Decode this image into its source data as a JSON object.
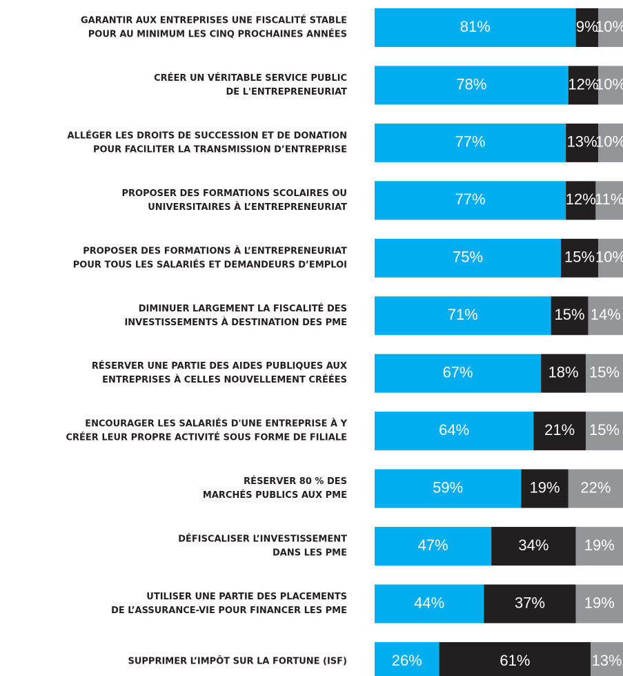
{
  "chart_data": {
    "type": "stacked-bar-horizontal",
    "categories": [
      [
        "GARANTIR AUX ENTREPRISES UNE FISCALITÉ STABLE",
        "POUR AU MINIMUM LES CINQ PROCHAINES ANNÉES"
      ],
      [
        "CRÉER UN VÉRITABLE SERVICE PUBLIC",
        "DE L'ENTREPRENEURIAT"
      ],
      [
        "ALLÉGER LES DROITS DE SUCCESSION ET DE DONATION",
        "POUR FACILITER LA TRANSMISSION D’ENTREPRISE"
      ],
      [
        "PROPOSER DES FORMATIONS SCOLAIRES OU",
        "UNIVERSITAIRES À L’ENTREPRENEURIAT"
      ],
      [
        "PROPOSER DES FORMATIONS À L’ENTREPRENEURIAT",
        "POUR TOUS LES SALARIÉS ET DEMANDEURS D’EMPLOI"
      ],
      [
        "DIMINUER LARGEMENT LA FISCALITÉ DES",
        "INVESTISSEMENTS À DESTINATION DES PME"
      ],
      [
        "RÉSERVER UNE PARTIE DES AIDES PUBLIQUES AUX",
        "ENTREPRISES À CELLES NOUVELLEMENT CRÉÉES"
      ],
      [
        "ENCOURAGER LES SALARIÉS D'UNE ENTREPRISE À Y",
        "CRÉER LEUR PROPRE ACTIVITÉ SOUS FORME DE FILIALE"
      ],
      [
        "RÉSERVER 80 % DES",
        "MARCHÉS PUBLICS AUX PME"
      ],
      [
        "DÉFISCALISER L’INVESTISSEMENT",
        "DANS LES PME"
      ],
      [
        "UTILISER UNE PARTIE DES PLACEMENTS",
        "DE L’ASSURANCE-VIE POUR FINANCER LES PME"
      ],
      [
        "SUPPRIMER L’IMPÔT SUR LA FORTUNE (ISF)"
      ]
    ],
    "series": [
      {
        "color": "#00aeef",
        "values": [
          81,
          78,
          77,
          77,
          75,
          71,
          67,
          64,
          59,
          47,
          44,
          26
        ],
        "value_labels": [
          "81%",
          "78%",
          "77%",
          "77%",
          "75%",
          "71%",
          "67%",
          "64%",
          "59%",
          "47%",
          "44%",
          "26%"
        ]
      },
      {
        "color": "#231f20",
        "values": [
          9,
          12,
          13,
          12,
          15,
          15,
          18,
          21,
          19,
          34,
          37,
          61
        ],
        "value_labels": [
          "9%",
          "12%",
          "13%",
          "12%",
          "15%",
          "15%",
          "18%",
          "21%",
          "19%",
          "34%",
          "37%",
          "61%"
        ]
      },
      {
        "color": "#939598",
        "values": [
          10,
          10,
          10,
          11,
          10,
          14,
          15,
          15,
          22,
          19,
          19,
          13
        ],
        "value_labels": [
          "10%",
          "10%",
          "10%",
          "11%",
          "10%",
          "14%",
          "15%",
          "15%",
          "22%",
          "19%",
          "19%",
          "13%"
        ]
      }
    ],
    "xlim": [
      0,
      100
    ]
  }
}
